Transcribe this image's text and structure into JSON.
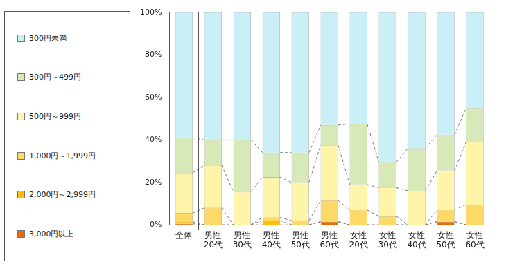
{
  "chart_data": {
    "type": "bar",
    "stacked": true,
    "categories": [
      "全体",
      "男性\n20代",
      "男性\n30代",
      "男性\n40代",
      "男性\n50代",
      "男性\n60代",
      "女性\n20代",
      "女性\n30代",
      "女性\n40代",
      "女性\n50代",
      "女性\n60代"
    ],
    "series": [
      {
        "name": "3,000円以上",
        "color": "#E46C0A",
        "values": [
          0.5,
          0,
          0,
          0,
          0,
          1.5,
          0,
          0,
          0,
          1.5,
          0
        ]
      },
      {
        "name": "2,000円～2,999円",
        "color": "#FFC000",
        "values": [
          1,
          0,
          0,
          2,
          0,
          0,
          0,
          0,
          0,
          0,
          0
        ]
      },
      {
        "name": "1,000円～1,999円",
        "color": "#FFD966",
        "values": [
          4,
          8,
          0,
          1.5,
          2,
          10,
          7,
          4,
          0,
          5.5,
          9.5
        ]
      },
      {
        "name": "500円～999円",
        "color": "#FFF5A8",
        "values": [
          19,
          20,
          15.5,
          19,
          18,
          26,
          12,
          13.5,
          16,
          18.5,
          29.5
        ]
      },
      {
        "name": "300円～499円",
        "color": "#D7E9B9",
        "values": [
          16.5,
          12,
          24.5,
          11.5,
          14,
          9.5,
          28.5,
          12,
          20,
          17,
          16
        ]
      },
      {
        "name": "300円未満",
        "color": "#C9F0F7",
        "values": [
          59,
          60,
          60,
          66,
          66,
          53,
          52.5,
          70.5,
          64,
          57.5,
          45
        ]
      }
    ],
    "ylim": [
      0,
      100
    ],
    "yticks": [
      {
        "value": 0,
        "label": "0%"
      },
      {
        "value": 20,
        "label": "20%"
      },
      {
        "value": 40,
        "label": "40%"
      },
      {
        "value": 60,
        "label": "60%"
      },
      {
        "value": 80,
        "label": "80%"
      },
      {
        "value": 100,
        "label": "100%"
      }
    ],
    "grid": false,
    "legend": "left"
  }
}
